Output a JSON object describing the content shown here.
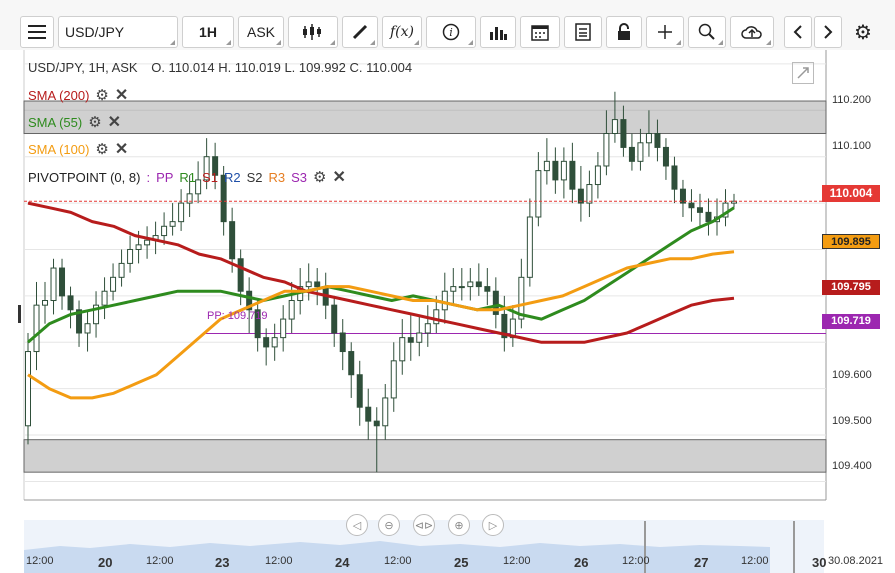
{
  "toolbar": {
    "symbol": "USD/JPY",
    "timeframe": "1H",
    "price_type": "ASK"
  },
  "header": {
    "instrument": "USD/JPY, 1H, ASK",
    "ohlc": "O. 110.014 H. 110.019 L. 109.992 C. 110.004"
  },
  "indicators": [
    {
      "label": "SMA (200)",
      "color": "#b71c1c"
    },
    {
      "label": "SMA (55)",
      "color": "#2e8b1e"
    },
    {
      "label": "SMA (100)",
      "color": "#f39c12"
    }
  ],
  "pivot": {
    "name": "PIVOTPOINT (0, 8)",
    "levels": [
      {
        "label": "PP",
        "color": "#9c27b0"
      },
      {
        "label": "R1",
        "color": "#2e8b1e"
      },
      {
        "label": "S1",
        "color": "#b71c1c"
      },
      {
        "label": "R2",
        "color": "#1f4fa8"
      },
      {
        "label": "S2",
        "color": "#333333"
      },
      {
        "label": "R3",
        "color": "#e67e22"
      },
      {
        "label": "S3",
        "color": "#9c27b0"
      }
    ],
    "pp_line_label": "PP: 109.719"
  },
  "price_tags": {
    "last": "110.004",
    "sma100": "109.895",
    "sma200": "109.795",
    "pp": "109.719"
  },
  "chart_data": {
    "type": "candlestick",
    "title": "USD/JPY, 1H, ASK",
    "ylim": [
      109.36,
      110.33
    ],
    "yticks": [
      "110.200",
      "110.100",
      "109.600",
      "109.500",
      "109.400"
    ],
    "xticks": [
      "12:00",
      "20",
      "12:00",
      "23",
      "12:00",
      "24",
      "12:00",
      "25",
      "12:00",
      "26",
      "12:00",
      "27",
      "12:00",
      "30",
      "30.08.2021"
    ],
    "day_ticks": [
      "20",
      "23",
      "24",
      "25",
      "26",
      "27",
      "30"
    ],
    "support_zone": [
      109.42,
      109.49
    ],
    "resistance_zone": [
      110.15,
      110.22
    ],
    "pp_level": 109.719,
    "last_price": 110.004,
    "candles": {
      "open": [
        109.52,
        109.68,
        109.78,
        109.79,
        109.86,
        109.8,
        109.77,
        109.72,
        109.74,
        109.78,
        109.81,
        109.84,
        109.87,
        109.9,
        109.91,
        109.92,
        109.93,
        109.95,
        109.96,
        110.0,
        110.02,
        110.05,
        110.1,
        110.06,
        109.96,
        109.88,
        109.81,
        109.77,
        109.71,
        109.69,
        109.71,
        109.75,
        109.79,
        109.82,
        109.83,
        109.82,
        109.78,
        109.72,
        109.68,
        109.63,
        109.56,
        109.53,
        109.52,
        109.58,
        109.66,
        109.71,
        109.7,
        109.72,
        109.74,
        109.77,
        109.81,
        109.82,
        109.82,
        109.83,
        109.82,
        109.81,
        109.76,
        109.71,
        109.75,
        109.84,
        109.97,
        110.07,
        110.09,
        110.05,
        110.09,
        110.03,
        110.0,
        110.04,
        110.08,
        110.15,
        110.18,
        110.12,
        110.09,
        110.13,
        110.15,
        110.12,
        110.08,
        110.03,
        110.0,
        109.99,
        109.98,
        109.96,
        109.97,
        110.0
      ],
      "close": [
        109.68,
        109.78,
        109.79,
        109.86,
        109.8,
        109.77,
        109.72,
        109.74,
        109.78,
        109.81,
        109.84,
        109.87,
        109.9,
        109.91,
        109.92,
        109.93,
        109.95,
        109.96,
        110.0,
        110.02,
        110.05,
        110.1,
        110.06,
        109.96,
        109.88,
        109.81,
        109.77,
        109.71,
        109.69,
        109.71,
        109.75,
        109.79,
        109.82,
        109.83,
        109.82,
        109.78,
        109.72,
        109.68,
        109.63,
        109.56,
        109.53,
        109.52,
        109.58,
        109.66,
        109.71,
        109.7,
        109.72,
        109.74,
        109.77,
        109.81,
        109.82,
        109.82,
        109.83,
        109.82,
        109.81,
        109.76,
        109.71,
        109.75,
        109.84,
        109.97,
        110.07,
        110.09,
        110.05,
        110.09,
        110.03,
        110.0,
        110.04,
        110.08,
        110.15,
        110.18,
        110.12,
        110.09,
        110.13,
        110.15,
        110.12,
        110.08,
        110.03,
        110.0,
        109.99,
        109.98,
        109.96,
        109.97,
        110.0,
        110.004
      ],
      "high": [
        109.72,
        109.83,
        109.83,
        109.88,
        109.88,
        109.82,
        109.79,
        109.77,
        109.81,
        109.84,
        109.87,
        109.9,
        109.93,
        109.94,
        109.95,
        109.96,
        109.98,
        110.0,
        110.03,
        110.06,
        110.09,
        110.14,
        110.13,
        110.08,
        109.99,
        109.9,
        109.84,
        109.79,
        109.73,
        109.74,
        109.78,
        109.83,
        109.86,
        109.87,
        109.86,
        109.85,
        109.8,
        109.75,
        109.7,
        109.66,
        109.6,
        109.56,
        109.61,
        109.7,
        109.75,
        109.76,
        109.76,
        109.78,
        109.8,
        109.85,
        109.86,
        109.86,
        109.86,
        109.87,
        109.86,
        109.84,
        109.8,
        109.78,
        109.88,
        110.01,
        110.11,
        110.14,
        110.12,
        110.12,
        110.13,
        110.08,
        110.07,
        110.11,
        110.2,
        110.24,
        110.21,
        110.15,
        110.16,
        110.2,
        110.18,
        110.14,
        110.1,
        110.05,
        110.03,
        110.02,
        110.01,
        110.01,
        110.03,
        110.02
      ],
      "low": [
        109.48,
        109.64,
        109.74,
        109.76,
        109.77,
        109.73,
        109.69,
        109.68,
        109.71,
        109.75,
        109.79,
        109.82,
        109.85,
        109.87,
        109.88,
        109.89,
        109.91,
        109.93,
        109.94,
        109.97,
        110.0,
        110.03,
        110.03,
        109.93,
        109.85,
        109.78,
        109.72,
        109.68,
        109.65,
        109.66,
        109.68,
        109.72,
        109.76,
        109.79,
        109.78,
        109.75,
        109.69,
        109.64,
        109.58,
        109.52,
        109.49,
        109.42,
        109.49,
        109.55,
        109.63,
        109.66,
        109.67,
        109.69,
        109.72,
        109.74,
        109.78,
        109.79,
        109.79,
        109.8,
        109.78,
        109.73,
        109.68,
        109.69,
        109.73,
        109.82,
        109.95,
        110.04,
        110.02,
        110.01,
        110.0,
        109.96,
        109.97,
        110.01,
        110.06,
        110.13,
        110.1,
        110.07,
        110.07,
        110.1,
        110.09,
        110.05,
        110.0,
        109.97,
        109.96,
        109.95,
        109.93,
        109.93,
        109.95,
        109.99
      ]
    },
    "series": [
      {
        "name": "SMA (200)",
        "color": "#b71c1c",
        "values": [
          110.0,
          109.99,
          109.98,
          109.96,
          109.95,
          109.93,
          109.92,
          109.91,
          109.89,
          109.88,
          109.86,
          109.84,
          109.83,
          109.81,
          109.8,
          109.79,
          109.78,
          109.77,
          109.76,
          109.75,
          109.74,
          109.73,
          109.72,
          109.71,
          109.7,
          109.7,
          109.7,
          109.71,
          109.72,
          109.74,
          109.76,
          109.78,
          109.79,
          109.795
        ]
      },
      {
        "name": "SMA (55)",
        "color": "#2e8b1e",
        "values": [
          109.7,
          109.74,
          109.76,
          109.77,
          109.78,
          109.79,
          109.8,
          109.81,
          109.81,
          109.81,
          109.8,
          109.79,
          109.8,
          109.81,
          109.82,
          109.81,
          109.8,
          109.79,
          109.8,
          109.79,
          109.78,
          109.77,
          109.78,
          109.76,
          109.75,
          109.77,
          109.79,
          109.82,
          109.85,
          109.88,
          109.91,
          109.94,
          109.96,
          109.99
        ]
      },
      {
        "name": "SMA (100)",
        "color": "#f39c12",
        "values": [
          109.63,
          109.6,
          109.58,
          109.58,
          109.59,
          109.61,
          109.63,
          109.67,
          109.71,
          109.75,
          109.77,
          109.79,
          109.81,
          109.81,
          109.82,
          109.82,
          109.81,
          109.8,
          109.79,
          109.79,
          109.78,
          109.77,
          109.77,
          109.78,
          109.79,
          109.8,
          109.82,
          109.84,
          109.86,
          109.87,
          109.88,
          109.88,
          109.89,
          109.895
        ]
      }
    ]
  }
}
